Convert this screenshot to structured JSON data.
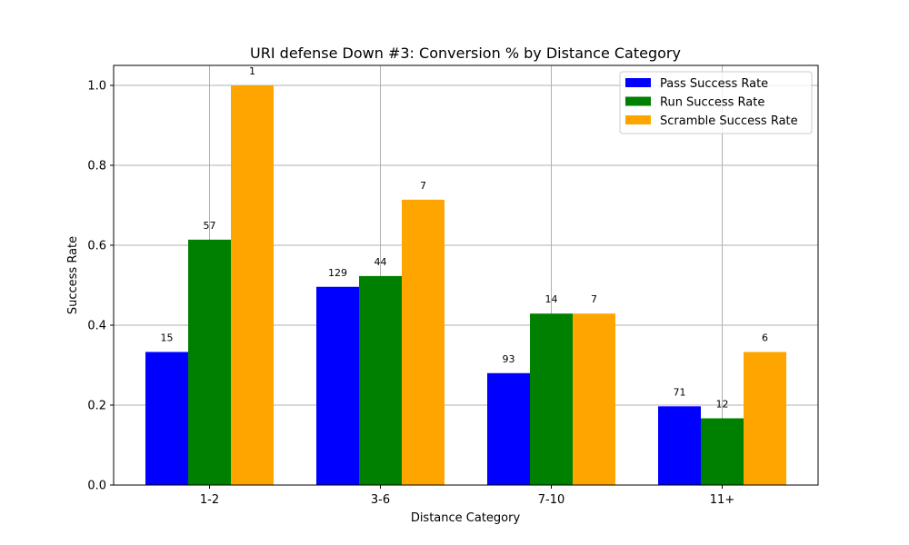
{
  "chart_data": {
    "type": "bar",
    "title": "URI defense Down #3: Conversion % by Distance Category",
    "xlabel": "Distance Category",
    "ylabel": "Success Rate",
    "categories": [
      "1-2",
      "3-6",
      "7-10",
      "11+"
    ],
    "ylim": [
      0,
      1.05
    ],
    "yticks": [
      "0.0",
      "0.2",
      "0.4",
      "0.6",
      "0.8",
      "1.0"
    ],
    "grid": true,
    "legend_position": "top-right",
    "series": [
      {
        "name": "Pass Success Rate",
        "color": "#0000ff",
        "values": [
          0.333,
          0.496,
          0.28,
          0.197
        ],
        "labels": [
          "15",
          "129",
          "93",
          "71"
        ]
      },
      {
        "name": "Run Success Rate",
        "color": "#008000",
        "values": [
          0.614,
          0.523,
          0.429,
          0.167
        ],
        "labels": [
          "57",
          "44",
          "14",
          "12"
        ]
      },
      {
        "name": "Scramble Success Rate",
        "color": "#ffa500",
        "values": [
          1.0,
          0.714,
          0.429,
          0.333
        ],
        "labels": [
          "1",
          "7",
          "7",
          "6"
        ]
      }
    ]
  }
}
